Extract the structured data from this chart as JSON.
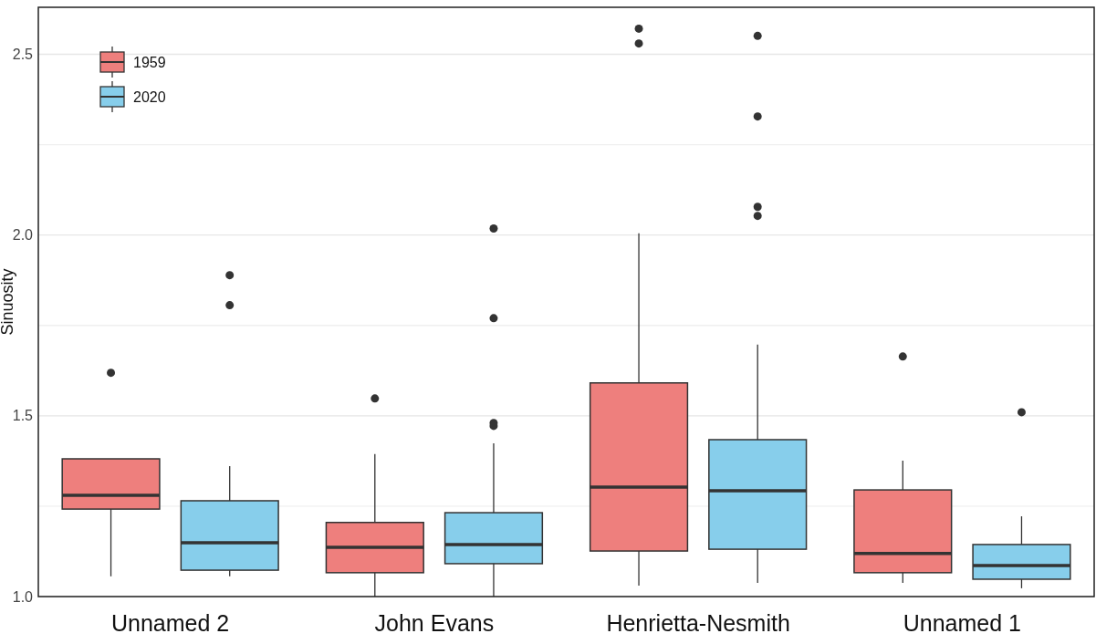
{
  "chart_data": {
    "type": "box",
    "ylabel": "Sinuosity",
    "categories": [
      "Unnamed 2",
      "John Evans",
      "Henrietta-Nesmith",
      "Unnamed 1"
    ],
    "ylim": [
      1,
      2.63
    ],
    "yticks": [
      {
        "value": 1,
        "label": "1.0"
      },
      {
        "value": 1.25,
        "label": null
      },
      1.5,
      {
        "value": 1.75,
        "label": null
      },
      {
        "value": 2,
        "label": "2.0"
      },
      {
        "value": 2.25,
        "label": null
      },
      2.5
    ],
    "grid": "y",
    "legend": "top left",
    "series": [
      {
        "name": "1959",
        "color": "#ee7f7d",
        "boxes": [
          {
            "low": 1.056,
            "q1": 1.242,
            "median": 1.28,
            "q3": 1.381,
            "high": 1.381,
            "outliers": [
              1.619
            ]
          },
          {
            "low": 1.0,
            "q1": 1.066,
            "median": 1.136,
            "q3": 1.205,
            "high": 1.394,
            "outliers": [
              1.548
            ]
          },
          {
            "low": 1.03,
            "q1": 1.126,
            "median": 1.303,
            "q3": 1.591,
            "high": 2.005,
            "outliers": [
              2.571,
              2.53
            ]
          },
          {
            "low": 1.038,
            "q1": 1.066,
            "median": 1.119,
            "q3": 1.295,
            "high": 1.376,
            "outliers": [
              1.664
            ]
          }
        ]
      },
      {
        "name": "2020",
        "color": "#87ceeb",
        "boxes": [
          {
            "low": 1.056,
            "q1": 1.073,
            "median": 1.149,
            "q3": 1.265,
            "high": 1.361,
            "outliers": [
              1.889,
              1.806
            ]
          },
          {
            "low": 1.0,
            "q1": 1.091,
            "median": 1.144,
            "q3": 1.232,
            "high": 1.424,
            "outliers": [
              2.018,
              1.77,
              1.48,
              1.472
            ]
          },
          {
            "low": 1.038,
            "q1": 1.131,
            "median": 1.293,
            "q3": 1.434,
            "high": 1.697,
            "outliers": [
              2.551,
              2.328,
              2.078,
              2.053
            ]
          },
          {
            "low": 1.023,
            "q1": 1.048,
            "median": 1.086,
            "q3": 1.144,
            "high": 1.222,
            "outliers": [
              1.51
            ]
          }
        ]
      }
    ]
  }
}
